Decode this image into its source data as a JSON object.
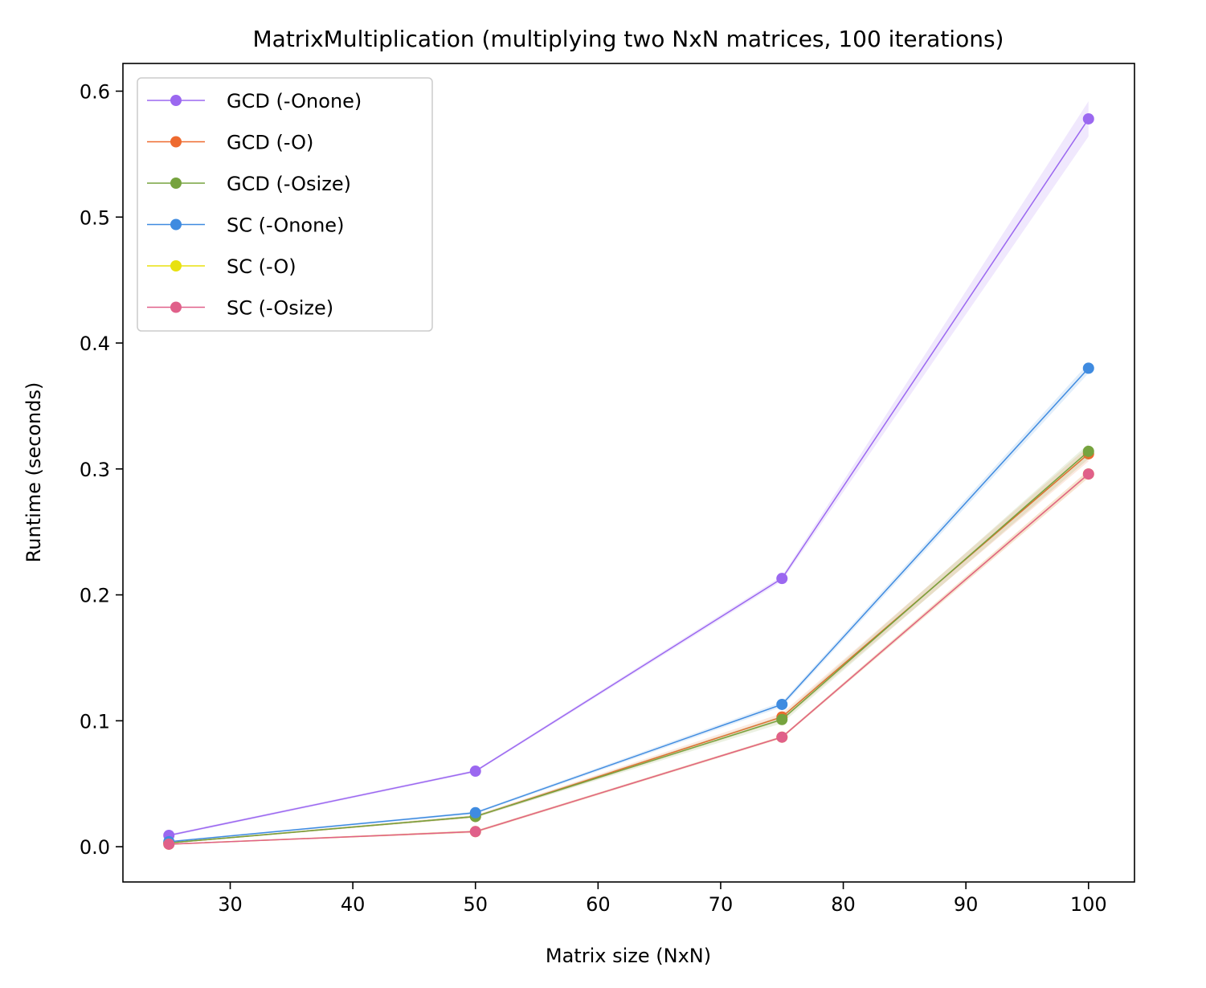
{
  "chart_data": {
    "type": "line",
    "title": "MatrixMultiplication (multiplying two NxN matrices, 100 iterations)",
    "xlabel": "Matrix size (NxN)",
    "ylabel": "Runtime (seconds)",
    "xlim": [
      21.25,
      103.75
    ],
    "ylim": [
      -0.028,
      0.622
    ],
    "xticks": [
      30,
      40,
      50,
      60,
      70,
      80,
      90,
      100
    ],
    "yticks": [
      0.0,
      0.1,
      0.2,
      0.3,
      0.4,
      0.5,
      0.6
    ],
    "xtick_labels": [
      "30",
      "40",
      "50",
      "60",
      "70",
      "80",
      "90",
      "100"
    ],
    "ytick_labels": [
      "0.0",
      "0.1",
      "0.2",
      "0.3",
      "0.4",
      "0.5",
      "0.6"
    ],
    "grid": false,
    "legend_position": "upper-left",
    "x": [
      25,
      50,
      75,
      100
    ],
    "series": [
      {
        "name": "GCD (-Onone)",
        "color": "#9b68f0",
        "values": [
          0.009,
          0.06,
          0.213,
          0.578
        ],
        "band": [
          0.001,
          0.001,
          0.002,
          0.014
        ]
      },
      {
        "name": "GCD (-O)",
        "color": "#ee6a2f",
        "values": [
          0.003,
          0.024,
          0.103,
          0.312
        ],
        "band": [
          0.0005,
          0.001,
          0.003,
          0.006
        ]
      },
      {
        "name": "GCD (-Osize)",
        "color": "#76a33e",
        "values": [
          0.003,
          0.024,
          0.101,
          0.314
        ],
        "band": [
          0.0005,
          0.001,
          0.003,
          0.006
        ]
      },
      {
        "name": "SC (-Onone)",
        "color": "#3f8be0",
        "values": [
          0.004,
          0.027,
          0.113,
          0.38
        ],
        "band": [
          0.0005,
          0.001,
          0.002,
          0.004
        ]
      },
      {
        "name": "SC (-O)",
        "color": "#e8e10f",
        "values": [
          0.002,
          0.012,
          0.087,
          0.296
        ],
        "band": [
          0.0003,
          0.001,
          0.001,
          0.003
        ]
      },
      {
        "name": "SC (-Osize)",
        "color": "#e0608a",
        "values": [
          0.002,
          0.012,
          0.087,
          0.296
        ],
        "band": [
          0.0003,
          0.001,
          0.001,
          0.003
        ]
      }
    ]
  }
}
